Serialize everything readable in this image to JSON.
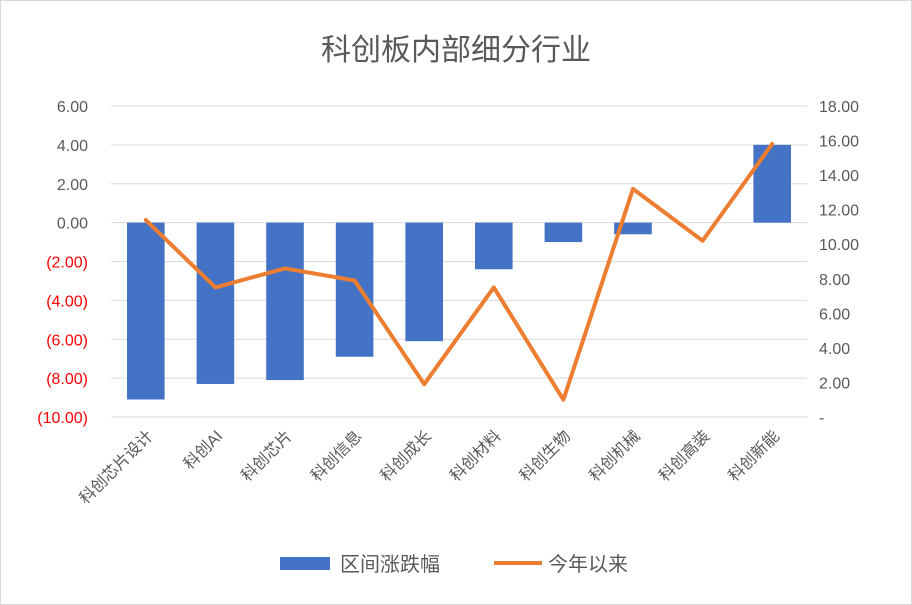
{
  "chart_data": {
    "type": "bar+line",
    "title": "科创板内部细分行业",
    "categories": [
      "科创芯片设计",
      "科创AI",
      "科创芯片",
      "科创信息",
      "科创成长",
      "科创材料",
      "科创生物",
      "科创机械",
      "科创高装",
      "科创新能"
    ],
    "series": [
      {
        "name": "区间涨跌幅",
        "type": "bar",
        "axis": "left",
        "color": "#4472c4",
        "values": [
          -9.1,
          -8.3,
          -8.1,
          -6.9,
          -6.1,
          -2.4,
          -1.0,
          -0.6,
          0.0,
          4.0
        ]
      },
      {
        "name": "今年以来",
        "type": "line",
        "axis": "right",
        "color": "#ed7d31",
        "values": [
          11.4,
          7.5,
          8.6,
          7.9,
          1.9,
          7.5,
          1.0,
          13.2,
          10.2,
          15.8
        ]
      }
    ],
    "y_left": {
      "ylim": [
        -10,
        6
      ],
      "ticks": [
        6,
        4,
        2,
        0,
        -2,
        -4,
        -6,
        -8,
        -10
      ],
      "tick_labels": [
        "6.00",
        "4.00",
        "2.00",
        "0.00",
        "(2.00)",
        "(4.00)",
        "(6.00)",
        "(8.00)",
        "(10.00)"
      ],
      "negative_color": "#ff0000"
    },
    "y_right": {
      "ylim": [
        0,
        18
      ],
      "ticks": [
        18,
        16,
        14,
        12,
        10,
        8,
        6,
        4,
        2,
        0
      ],
      "tick_labels": [
        "18.00",
        "16.00",
        "14.00",
        "12.00",
        "10.00",
        "8.00",
        "6.00",
        "4.00",
        "2.00",
        "-"
      ]
    },
    "grid": true,
    "legend": "bottom"
  }
}
